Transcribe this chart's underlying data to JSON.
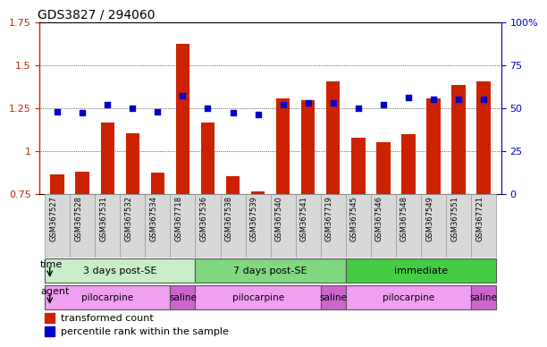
{
  "title": "GDS3827 / 294060",
  "samples": [
    "GSM367527",
    "GSM367528",
    "GSM367531",
    "GSM367532",
    "GSM367534",
    "GSM367718",
    "GSM367536",
    "GSM367538",
    "GSM367539",
    "GSM367540",
    "GSM367541",
    "GSM367719",
    "GSM367545",
    "GSM367546",
    "GSM367548",
    "GSM367549",
    "GSM367551",
    "GSM367721"
  ],
  "red_values": [
    0.865,
    0.88,
    1.165,
    1.105,
    0.875,
    1.625,
    1.165,
    0.855,
    0.765,
    1.305,
    1.295,
    1.405,
    1.075,
    1.05,
    1.095,
    1.305,
    1.385,
    1.405
  ],
  "blue_values": [
    48,
    47,
    52,
    50,
    48,
    57,
    50,
    47,
    46,
    52,
    53,
    53,
    50,
    52,
    56,
    55,
    55,
    55
  ],
  "ylim_left": [
    0.75,
    1.75
  ],
  "ylim_right": [
    0,
    100
  ],
  "yticks_left": [
    0.75,
    1.0,
    1.25,
    1.5,
    1.75
  ],
  "yticks_right": [
    0,
    25,
    50,
    75,
    100
  ],
  "ytick_labels_left": [
    "0.75",
    "1",
    "1.25",
    "1.5",
    "1.75"
  ],
  "ytick_labels_right": [
    "0",
    "25",
    "50",
    "75",
    "100%"
  ],
  "time_groups": [
    {
      "label": "3 days post-SE",
      "start": 0,
      "end": 6,
      "color": "#c8eec8"
    },
    {
      "label": "7 days post-SE",
      "start": 6,
      "end": 12,
      "color": "#80d880"
    },
    {
      "label": "immediate",
      "start": 12,
      "end": 18,
      "color": "#44cc44"
    }
  ],
  "agent_groups": [
    {
      "label": "pilocarpine",
      "start": 0,
      "end": 5,
      "color": "#f0a0f0"
    },
    {
      "label": "saline",
      "start": 5,
      "end": 6,
      "color": "#cc66cc"
    },
    {
      "label": "pilocarpine",
      "start": 6,
      "end": 11,
      "color": "#f0a0f0"
    },
    {
      "label": "saline",
      "start": 11,
      "end": 12,
      "color": "#cc66cc"
    },
    {
      "label": "pilocarpine",
      "start": 12,
      "end": 17,
      "color": "#f0a0f0"
    },
    {
      "label": "saline",
      "start": 17,
      "end": 18,
      "color": "#cc66cc"
    }
  ],
  "bar_color": "#cc2200",
  "dot_color": "#0000cc",
  "tick_color_left": "#cc2200",
  "tick_color_right": "#0000cc",
  "bar_width": 0.55,
  "dot_size": 16
}
